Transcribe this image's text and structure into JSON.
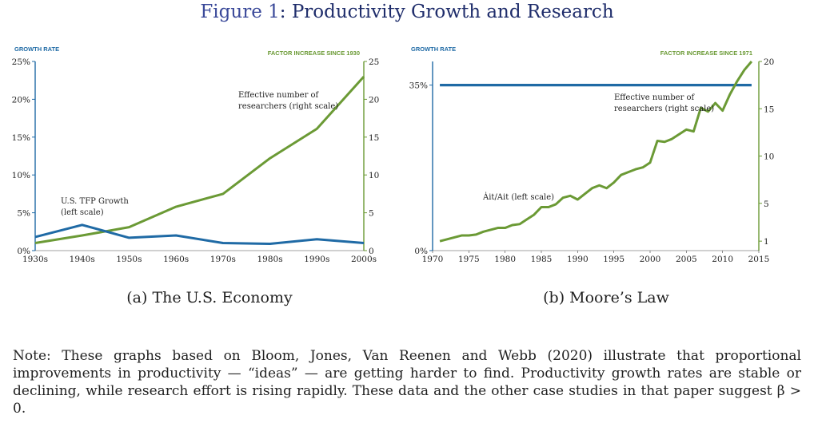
{
  "figure": {
    "title_prefix": "Figure",
    "title_num": "1",
    "title_rest": ": Productivity Growth and Research",
    "colors": {
      "blue": "#1f6aa5",
      "green": "#6b9a35",
      "title": "#1f2d6b"
    }
  },
  "chart_data": [
    {
      "id": "a",
      "type": "line",
      "caption": "(a) The U.S. Economy",
      "left_axis_title": "GROWTH RATE",
      "right_axis_title": "FACTOR INCREASE SINCE 1930",
      "categories": [
        "1930s",
        "1940s",
        "1950s",
        "1960s",
        "1970s",
        "1980s",
        "1990s",
        "2000s"
      ],
      "left_ticks": [
        "0%",
        "5%",
        "10%",
        "15%",
        "20%",
        "25%"
      ],
      "right_ticks": [
        "0",
        "5",
        "10",
        "15",
        "20",
        "25"
      ],
      "ylim_left": [
        0,
        25
      ],
      "ylim_right": [
        0,
        25
      ],
      "series": [
        {
          "name": "U.S. TFP Growth",
          "axis": "left",
          "color": "#1f6aa5",
          "values": [
            1.8,
            3.4,
            1.7,
            2.0,
            1.0,
            0.9,
            1.5,
            1.0
          ]
        },
        {
          "name": "Effective number of researchers",
          "axis": "right",
          "color": "#6b9a35",
          "values": [
            1.0,
            2.0,
            3.1,
            5.8,
            7.5,
            12.2,
            16.1,
            23.0
          ]
        }
      ],
      "annotations": [
        {
          "lines": [
            "Effective number of",
            "researchers (right scale)"
          ]
        },
        {
          "lines": [
            "U.S. TFP Growth",
            "(left scale)"
          ]
        }
      ]
    },
    {
      "id": "b",
      "type": "line",
      "caption": "(b) Moore’s Law",
      "left_axis_title": "GROWTH RATE",
      "right_axis_title": "FACTOR INCREASE SINCE 1971",
      "xlim": [
        1970,
        2015
      ],
      "x_ticks": [
        "1970",
        "1975",
        "1980",
        "1985",
        "1990",
        "1995",
        "2000",
        "2005",
        "2010",
        "2015"
      ],
      "left_ticks": [
        "0%",
        "35%"
      ],
      "right_ticks": [
        "1",
        "5",
        "10",
        "15",
        "20"
      ],
      "ylim_left": [
        0,
        40
      ],
      "ylim_right": [
        0,
        20
      ],
      "series": [
        {
          "name": "Ȧit/Ait",
          "axis": "left",
          "color": "#1f6aa5",
          "x": [
            1971,
            2014
          ],
          "values": [
            35,
            35
          ]
        },
        {
          "name": "Effective number of researchers",
          "axis": "right",
          "color": "#6b9a35",
          "x": [
            1971,
            1972,
            1973,
            1974,
            1975,
            1976,
            1977,
            1978,
            1979,
            1980,
            1981,
            1982,
            1983,
            1984,
            1985,
            1986,
            1987,
            1988,
            1989,
            1990,
            1991,
            1992,
            1993,
            1994,
            1995,
            1996,
            1997,
            1998,
            1999,
            2000,
            2001,
            2002,
            2003,
            2004,
            2005,
            2006,
            2007,
            2008,
            2009,
            2010,
            2011,
            2012,
            2013,
            2014
          ],
          "values": [
            1.0,
            1.2,
            1.4,
            1.6,
            1.6,
            1.7,
            2.0,
            2.2,
            2.4,
            2.4,
            2.7,
            2.8,
            3.3,
            3.8,
            4.6,
            4.6,
            4.9,
            5.6,
            5.8,
            5.4,
            6.0,
            6.6,
            6.9,
            6.6,
            7.2,
            8.0,
            8.3,
            8.6,
            8.8,
            9.3,
            11.6,
            11.5,
            11.8,
            12.3,
            12.8,
            12.6,
            15.1,
            14.7,
            15.6,
            14.8,
            16.5,
            17.9,
            19.1,
            20.0
          ]
        }
      ],
      "annotations": [
        {
          "lines": [
            "Effective number of",
            "researchers (right scale)"
          ]
        },
        {
          "lines": [
            "Ȧit/Ait (left scale)"
          ]
        }
      ]
    }
  ],
  "note": "Note: These graphs based on Bloom, Jones, Van Reenen and Webb (2020) illustrate that proportional improvements in productivity — “ideas” — are getting harder to find. Productivity growth rates are stable or declining, while research effort is rising rapidly. These data and the other case studies in that paper suggest β > 0."
}
